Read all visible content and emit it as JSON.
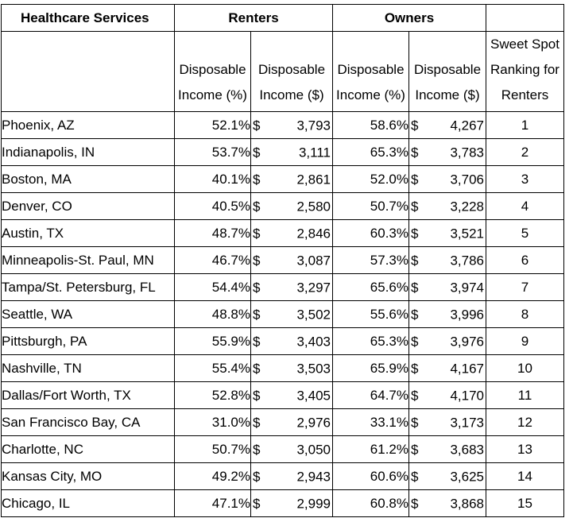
{
  "header": {
    "title": "Healthcare Services",
    "renters": "Renters",
    "owners": "Owners",
    "col_pct_line1": "Disposable",
    "col_pct_line2": "Income (%)",
    "col_usd_line1": "Disposable",
    "col_usd_line2": "Income ($)",
    "rank_line1": "Sweet Spot",
    "rank_line2": "Ranking for",
    "rank_line3": "Renters"
  },
  "currency_symbol": "$",
  "rows": [
    {
      "city": "Phoenix, AZ",
      "renter_pct": "52.1%",
      "renter_usd": "3,793",
      "owner_pct": "58.6%",
      "owner_usd": "4,267",
      "rank": "1"
    },
    {
      "city": "Indianapolis, IN",
      "renter_pct": "53.7%",
      "renter_usd": "3,111",
      "owner_pct": "65.3%",
      "owner_usd": "3,783",
      "rank": "2"
    },
    {
      "city": "Boston, MA",
      "renter_pct": "40.1%",
      "renter_usd": "2,861",
      "owner_pct": "52.0%",
      "owner_usd": "3,706",
      "rank": "3"
    },
    {
      "city": "Denver, CO",
      "renter_pct": "40.5%",
      "renter_usd": "2,580",
      "owner_pct": "50.7%",
      "owner_usd": "3,228",
      "rank": "4"
    },
    {
      "city": "Austin, TX",
      "renter_pct": "48.7%",
      "renter_usd": "2,846",
      "owner_pct": "60.3%",
      "owner_usd": "3,521",
      "rank": "5"
    },
    {
      "city": "Minneapolis-St. Paul, MN",
      "renter_pct": "46.7%",
      "renter_usd": "3,087",
      "owner_pct": "57.3%",
      "owner_usd": "3,786",
      "rank": "6"
    },
    {
      "city": "Tampa/St. Petersburg, FL",
      "renter_pct": "54.4%",
      "renter_usd": "3,297",
      "owner_pct": "65.6%",
      "owner_usd": "3,974",
      "rank": "7"
    },
    {
      "city": "Seattle, WA",
      "renter_pct": "48.8%",
      "renter_usd": "3,502",
      "owner_pct": "55.6%",
      "owner_usd": "3,996",
      "rank": "8"
    },
    {
      "city": "Pittsburgh, PA",
      "renter_pct": "55.9%",
      "renter_usd": "3,403",
      "owner_pct": "65.3%",
      "owner_usd": "3,976",
      "rank": "9"
    },
    {
      "city": "Nashville, TN",
      "renter_pct": "55.4%",
      "renter_usd": "3,503",
      "owner_pct": "65.9%",
      "owner_usd": "4,167",
      "rank": "10"
    },
    {
      "city": "Dallas/Fort Worth, TX",
      "renter_pct": "52.8%",
      "renter_usd": "3,405",
      "owner_pct": "64.7%",
      "owner_usd": "4,170",
      "rank": "11"
    },
    {
      "city": "San Francisco Bay, CA",
      "renter_pct": "31.0%",
      "renter_usd": "2,976",
      "owner_pct": "33.1%",
      "owner_usd": "3,173",
      "rank": "12"
    },
    {
      "city": "Charlotte, NC",
      "renter_pct": "50.7%",
      "renter_usd": "3,050",
      "owner_pct": "61.2%",
      "owner_usd": "3,683",
      "rank": "13"
    },
    {
      "city": "Kansas City, MO",
      "renter_pct": "49.2%",
      "renter_usd": "2,943",
      "owner_pct": "60.6%",
      "owner_usd": "3,625",
      "rank": "14"
    },
    {
      "city": "Chicago, IL",
      "renter_pct": "47.1%",
      "renter_usd": "2,999",
      "owner_pct": "60.8%",
      "owner_usd": "3,868",
      "rank": "15"
    }
  ]
}
